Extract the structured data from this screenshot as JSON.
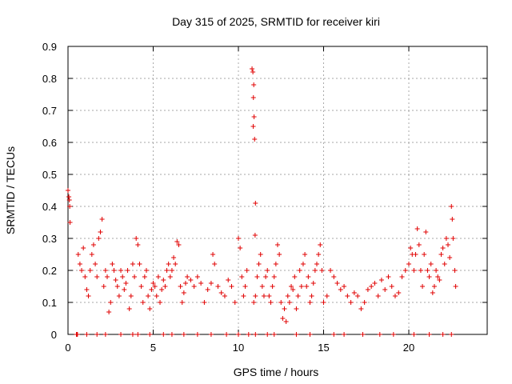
{
  "chart_data": {
    "type": "scatter",
    "title": "Day 315 of 2025, SRMTID for receiver kiri",
    "xlabel": "GPS time / hours",
    "ylabel": "SRMTID / TECUs",
    "xlim": [
      0,
      24.6
    ],
    "ylim": [
      0,
      0.9
    ],
    "xticks": [
      0,
      5,
      10,
      15,
      20
    ],
    "xtick_labels": [
      "0",
      "5",
      "10",
      "15",
      "20"
    ],
    "yticks": [
      0,
      0.1,
      0.2,
      0.3,
      0.4,
      0.5,
      0.6,
      0.7,
      0.8,
      0.9
    ],
    "ytick_labels": [
      "0",
      "0.1",
      "0.2",
      "0.3",
      "0.4",
      "0.5",
      "0.6",
      "0.7",
      "0.8",
      "0.9"
    ],
    "grid": true,
    "marker": "+",
    "color": "#e00000",
    "series": [
      {
        "name": "SRMTID",
        "points": [
          [
            0.0,
            0.45
          ],
          [
            0.05,
            0.43
          ],
          [
            0.1,
            0.4
          ],
          [
            0.12,
            0.35
          ],
          [
            0.08,
            0.42
          ],
          [
            0.5,
            0.0
          ],
          [
            0.55,
            0.0
          ],
          [
            0.6,
            0.25
          ],
          [
            0.7,
            0.22
          ],
          [
            0.8,
            0.2
          ],
          [
            0.9,
            0.27
          ],
          [
            1.0,
            0.18
          ],
          [
            1.1,
            0.14
          ],
          [
            1.2,
            0.12
          ],
          [
            1.3,
            0.2
          ],
          [
            1.4,
            0.25
          ],
          [
            1.5,
            0.28
          ],
          [
            1.6,
            0.22
          ],
          [
            1.7,
            0.18
          ],
          [
            1.8,
            0.3
          ],
          [
            1.9,
            0.32
          ],
          [
            2.0,
            0.36
          ],
          [
            2.1,
            0.15
          ],
          [
            2.2,
            0.2
          ],
          [
            2.3,
            0.18
          ],
          [
            2.4,
            0.07
          ],
          [
            2.5,
            0.1
          ],
          [
            2.6,
            0.22
          ],
          [
            2.7,
            0.2
          ],
          [
            2.8,
            0.17
          ],
          [
            2.9,
            0.15
          ],
          [
            3.0,
            0.12
          ],
          [
            3.1,
            0.2
          ],
          [
            3.2,
            0.18
          ],
          [
            3.3,
            0.14
          ],
          [
            3.4,
            0.16
          ],
          [
            3.5,
            0.2
          ],
          [
            3.6,
            0.08
          ],
          [
            3.7,
            0.12
          ],
          [
            3.8,
            0.22
          ],
          [
            3.9,
            0.18
          ],
          [
            4.0,
            0.3
          ],
          [
            4.1,
            0.28
          ],
          [
            4.2,
            0.22
          ],
          [
            4.3,
            0.15
          ],
          [
            4.4,
            0.1
          ],
          [
            4.5,
            0.18
          ],
          [
            4.6,
            0.2
          ],
          [
            4.7,
            0.12
          ],
          [
            4.8,
            0.08
          ],
          [
            4.9,
            0.14
          ],
          [
            5.0,
            0.16
          ],
          [
            5.1,
            0.15
          ],
          [
            5.2,
            0.12
          ],
          [
            5.3,
            0.18
          ],
          [
            5.4,
            0.1
          ],
          [
            5.5,
            0.14
          ],
          [
            5.6,
            0.17
          ],
          [
            5.7,
            0.15
          ],
          [
            5.8,
            0.2
          ],
          [
            5.9,
            0.22
          ],
          [
            6.0,
            0.18
          ],
          [
            6.1,
            0.2
          ],
          [
            6.2,
            0.24
          ],
          [
            6.3,
            0.22
          ],
          [
            6.4,
            0.29
          ],
          [
            6.5,
            0.28
          ],
          [
            6.6,
            0.15
          ],
          [
            6.7,
            0.1
          ],
          [
            6.8,
            0.13
          ],
          [
            6.9,
            0.16
          ],
          [
            7.0,
            0.18
          ],
          [
            7.2,
            0.17
          ],
          [
            7.4,
            0.15
          ],
          [
            7.6,
            0.18
          ],
          [
            7.8,
            0.16
          ],
          [
            8.0,
            0.1
          ],
          [
            8.2,
            0.14
          ],
          [
            8.4,
            0.16
          ],
          [
            8.5,
            0.25
          ],
          [
            8.6,
            0.22
          ],
          [
            8.8,
            0.15
          ],
          [
            9.0,
            0.13
          ],
          [
            9.2,
            0.12
          ],
          [
            9.4,
            0.17
          ],
          [
            9.6,
            0.15
          ],
          [
            9.8,
            0.1
          ],
          [
            10.0,
            0.3
          ],
          [
            10.1,
            0.27
          ],
          [
            10.2,
            0.18
          ],
          [
            10.3,
            0.12
          ],
          [
            10.4,
            0.15
          ],
          [
            10.5,
            0.2
          ],
          [
            10.8,
            0.83
          ],
          [
            10.85,
            0.82
          ],
          [
            10.9,
            0.78
          ],
          [
            10.88,
            0.74
          ],
          [
            10.92,
            0.68
          ],
          [
            10.87,
            0.65
          ],
          [
            10.95,
            0.61
          ],
          [
            11.0,
            0.41
          ],
          [
            10.98,
            0.31
          ],
          [
            10.9,
            0.1
          ],
          [
            11.0,
            0.12
          ],
          [
            11.1,
            0.18
          ],
          [
            11.2,
            0.22
          ],
          [
            11.3,
            0.25
          ],
          [
            11.4,
            0.15
          ],
          [
            11.5,
            0.12
          ],
          [
            11.6,
            0.18
          ],
          [
            11.7,
            0.2
          ],
          [
            11.8,
            0.12
          ],
          [
            11.9,
            0.1
          ],
          [
            12.0,
            0.15
          ],
          [
            12.1,
            0.18
          ],
          [
            12.2,
            0.22
          ],
          [
            12.3,
            0.28
          ],
          [
            12.4,
            0.25
          ],
          [
            12.5,
            0.1
          ],
          [
            12.6,
            0.05
          ],
          [
            12.7,
            0.08
          ],
          [
            12.8,
            0.04
          ],
          [
            12.9,
            0.12
          ],
          [
            13.0,
            0.1
          ],
          [
            13.1,
            0.15
          ],
          [
            13.2,
            0.14
          ],
          [
            13.3,
            0.18
          ],
          [
            13.4,
            0.08
          ],
          [
            13.5,
            0.12
          ],
          [
            13.6,
            0.2
          ],
          [
            13.7,
            0.15
          ],
          [
            13.8,
            0.22
          ],
          [
            13.9,
            0.25
          ],
          [
            14.0,
            0.15
          ],
          [
            14.1,
            0.18
          ],
          [
            14.2,
            0.1
          ],
          [
            14.3,
            0.12
          ],
          [
            14.4,
            0.16
          ],
          [
            14.5,
            0.2
          ],
          [
            14.6,
            0.22
          ],
          [
            14.7,
            0.25
          ],
          [
            14.8,
            0.28
          ],
          [
            14.9,
            0.2
          ],
          [
            15.0,
            0.1
          ],
          [
            15.2,
            0.12
          ],
          [
            15.4,
            0.2
          ],
          [
            15.6,
            0.18
          ],
          [
            15.8,
            0.16
          ],
          [
            16.0,
            0.14
          ],
          [
            16.2,
            0.15
          ],
          [
            16.4,
            0.12
          ],
          [
            16.6,
            0.1
          ],
          [
            16.8,
            0.13
          ],
          [
            17.0,
            0.12
          ],
          [
            17.2,
            0.08
          ],
          [
            17.4,
            0.1
          ],
          [
            17.6,
            0.14
          ],
          [
            17.8,
            0.15
          ],
          [
            18.0,
            0.16
          ],
          [
            18.2,
            0.12
          ],
          [
            18.4,
            0.17
          ],
          [
            18.6,
            0.14
          ],
          [
            18.8,
            0.18
          ],
          [
            19.0,
            0.15
          ],
          [
            19.2,
            0.12
          ],
          [
            19.4,
            0.13
          ],
          [
            19.6,
            0.18
          ],
          [
            19.8,
            0.2
          ],
          [
            20.0,
            0.22
          ],
          [
            20.1,
            0.27
          ],
          [
            20.2,
            0.25
          ],
          [
            20.3,
            0.2
          ],
          [
            20.4,
            0.25
          ],
          [
            20.5,
            0.33
          ],
          [
            20.6,
            0.28
          ],
          [
            20.7,
            0.2
          ],
          [
            20.8,
            0.15
          ],
          [
            20.9,
            0.25
          ],
          [
            21.0,
            0.32
          ],
          [
            21.1,
            0.2
          ],
          [
            21.2,
            0.18
          ],
          [
            21.3,
            0.22
          ],
          [
            21.4,
            0.13
          ],
          [
            21.5,
            0.15
          ],
          [
            21.6,
            0.2
          ],
          [
            21.7,
            0.18
          ],
          [
            21.8,
            0.17
          ],
          [
            21.9,
            0.25
          ],
          [
            22.0,
            0.27
          ],
          [
            22.1,
            0.22
          ],
          [
            22.2,
            0.3
          ],
          [
            22.3,
            0.28
          ],
          [
            22.4,
            0.24
          ],
          [
            22.5,
            0.4
          ],
          [
            22.55,
            0.36
          ],
          [
            22.6,
            0.3
          ],
          [
            22.7,
            0.2
          ],
          [
            22.75,
            0.15
          ]
        ]
      }
    ],
    "zero_marks": [
      0.5,
      0.55,
      1.1,
      1.7,
      2.2,
      3.1,
      3.8,
      4.1,
      4.8,
      5.6,
      6.1,
      6.8,
      7.6,
      8.4,
      9.3,
      10.0,
      10.6,
      11.0,
      11.7,
      12.1,
      13.4,
      14.2,
      15.6,
      16.2,
      17.3,
      18.3,
      19.1,
      20.3,
      21.2,
      22.0,
      22.5
    ]
  }
}
